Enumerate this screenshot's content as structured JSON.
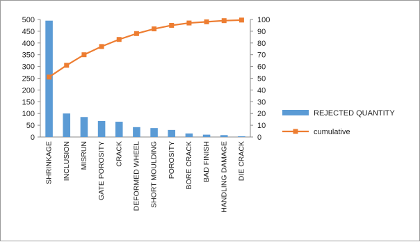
{
  "chart_data": {
    "type": "bar",
    "categories": [
      "SHRINKAGE",
      "INCLUSION",
      "MISRUN",
      "GATE POROSITY",
      "CRACK",
      "DEFORMED WHEEL",
      "SHORT MOULDING",
      "POROSITY",
      "BORE CRACK",
      "BAD FINISH",
      "HANDLING DAMAGE",
      "DIE CRACK"
    ],
    "series": [
      {
        "name": "REJECTED QUANTITY",
        "kind": "bar",
        "axis": "left",
        "color": "#5b9bd5",
        "values": [
          495,
          100,
          85,
          68,
          65,
          42,
          38,
          30,
          15,
          10,
          8,
          3
        ]
      },
      {
        "name": "cumulative",
        "kind": "line",
        "axis": "right",
        "color": "#ed7d31",
        "values": [
          51,
          61,
          70,
          77,
          83,
          88,
          92,
          95,
          97,
          98,
          99,
          99.5
        ]
      }
    ],
    "y_left": {
      "min": 0,
      "max": 500,
      "step": 50,
      "ticks": [
        "0",
        "50",
        "100",
        "150",
        "200",
        "250",
        "300",
        "350",
        "400",
        "450",
        "500"
      ]
    },
    "y_right": {
      "min": 0,
      "max": 100,
      "step": 10,
      "ticks": [
        "0",
        "10",
        "20",
        "30",
        "40",
        "50",
        "60",
        "70",
        "80",
        "90",
        "100"
      ]
    },
    "grid": false,
    "legend_position": "right"
  }
}
